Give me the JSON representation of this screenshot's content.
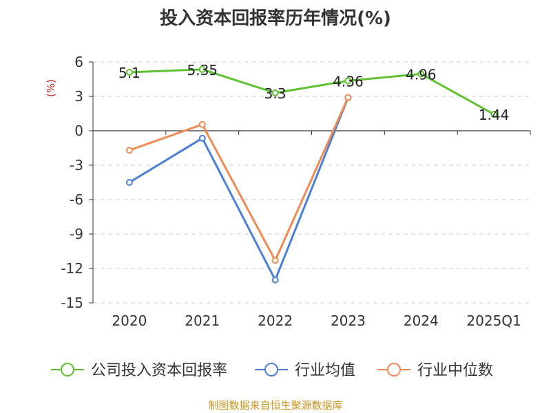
{
  "chart_data": {
    "type": "line",
    "title": "投入资本回报率历年情况(%)",
    "ylabel": "(%)",
    "categories": [
      "2020",
      "2021",
      "2022",
      "2023",
      "2024",
      "2025Q1"
    ],
    "ylim": [
      -15,
      6
    ],
    "yticks": [
      6,
      3,
      0,
      -3,
      -6,
      -9,
      -12,
      -15
    ],
    "grid": true,
    "legend_position": "bottom",
    "series": [
      {
        "name": "公司投入资本回报率",
        "color": "#5dc131",
        "values": [
          5.1,
          5.35,
          3.3,
          4.36,
          4.96,
          1.44
        ],
        "labels": [
          "5.1",
          "5.35",
          "3.3",
          "4.36",
          "4.96",
          "1.44"
        ]
      },
      {
        "name": "行业均值",
        "color": "#4a7fd6",
        "values": [
          -4.5,
          -0.65,
          -13.0,
          2.9,
          null,
          null
        ]
      },
      {
        "name": "行业中位数",
        "color": "#f08a55",
        "values": [
          -1.7,
          0.55,
          -11.3,
          2.9,
          null,
          null
        ]
      }
    ]
  },
  "source": "制图数据来自恒生聚源数据库"
}
